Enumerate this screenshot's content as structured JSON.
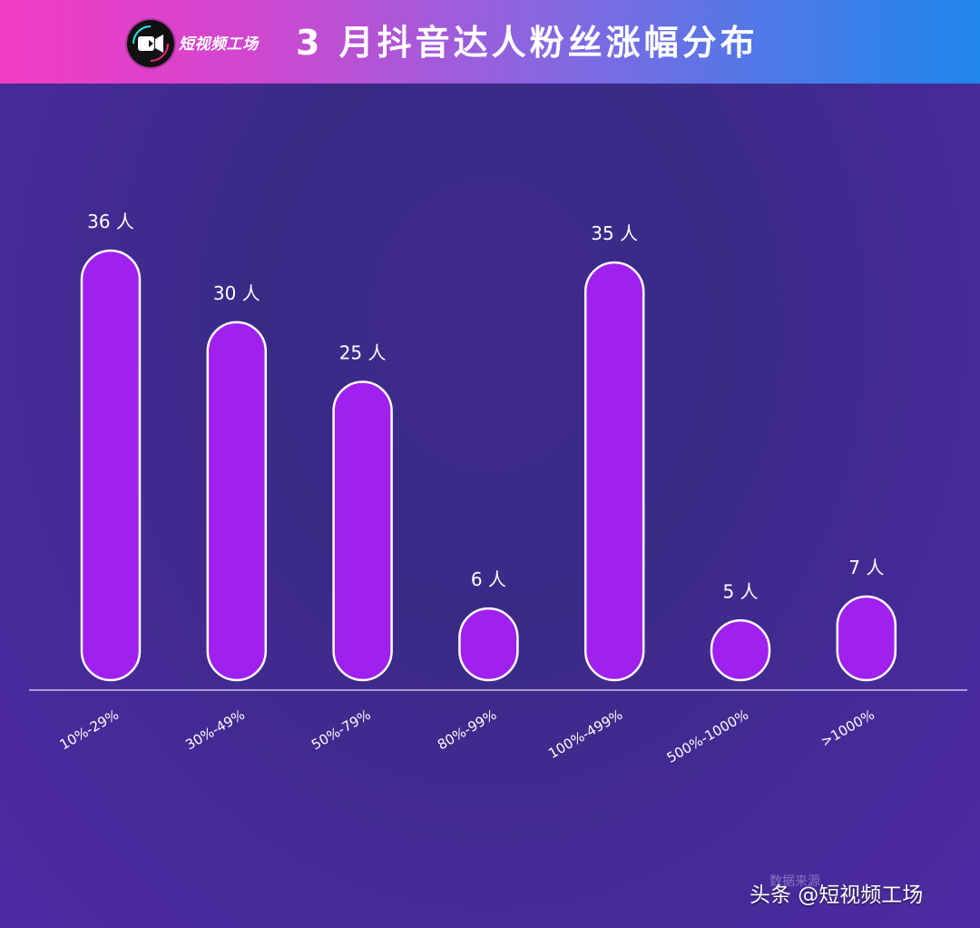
{
  "header": {
    "brand": "短视频工场",
    "title": "3 月抖音达人粉丝涨幅分布",
    "logo_icon": "video-camera-icon"
  },
  "chart_data": {
    "type": "bar",
    "title": "3 月抖音达人粉丝涨幅分布",
    "categories": [
      "10%-29%",
      "30%-49%",
      "50%-79%",
      "80%-99%",
      "100%-499%",
      "500%-1000%",
      ">1000%"
    ],
    "values": [
      36,
      30,
      25,
      6,
      35,
      5,
      7
    ],
    "value_labels": [
      "36 人",
      "30 人",
      "25 人",
      "6 人",
      "35 人",
      "5 人",
      "7 人"
    ],
    "xlabel": "",
    "ylabel": "",
    "ylim": [
      0,
      36
    ],
    "grid": false,
    "bar_color": "#a020f0",
    "bar_outline": "#ffffff"
  },
  "footer": {
    "source": "数据来源",
    "watermark": "头条 @短视频工场"
  }
}
